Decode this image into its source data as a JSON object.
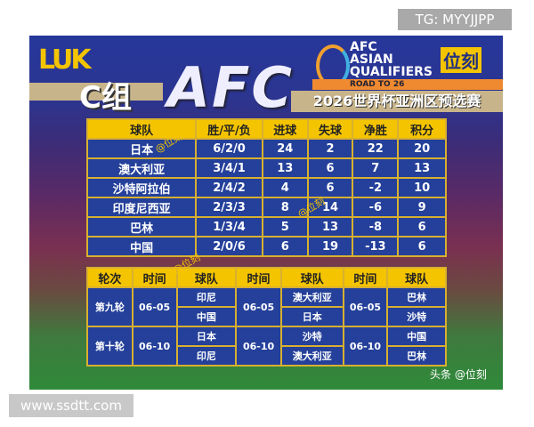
{
  "watermark_top": "TG: MYYJJPP",
  "watermark_bottom": "www.ssdtt.com",
  "header": {
    "logo": "LUK",
    "group": "C组",
    "afc_big": "AFC",
    "afc_logo_lines": [
      "AFC",
      "ASIAN",
      "QUALIFIERS"
    ],
    "road": "ROAD TO 26",
    "brand": "位刻",
    "subtitle": "2026世界杯亚洲区预选赛"
  },
  "standings": {
    "headers": [
      "球队",
      "胜/平/负",
      "进球",
      "失球",
      "净胜",
      "积分"
    ],
    "rows": [
      [
        "日本",
        "6/2/0",
        "24",
        "2",
        "22",
        "20"
      ],
      [
        "澳大利亚",
        "3/4/1",
        "13",
        "6",
        "7",
        "13"
      ],
      [
        "沙特阿拉伯",
        "2/4/2",
        "4",
        "6",
        "-2",
        "10"
      ],
      [
        "印度尼西亚",
        "2/3/3",
        "8",
        "14",
        "-6",
        "9"
      ],
      [
        "巴林",
        "1/3/4",
        "5",
        "13",
        "-8",
        "6"
      ],
      [
        "中国",
        "2/0/6",
        "6",
        "19",
        "-13",
        "6"
      ]
    ]
  },
  "fixtures": {
    "headers": [
      "轮次",
      "时间",
      "球队",
      "时间",
      "球队",
      "时间",
      "球队"
    ],
    "rounds": [
      {
        "round": "第九轮",
        "matches": [
          {
            "date": "06-05",
            "teams": [
              "印尼",
              "中国"
            ]
          },
          {
            "date": "06-05",
            "teams": [
              "澳大利亚",
              "日本"
            ]
          },
          {
            "date": "06-05",
            "teams": [
              "巴林",
              "沙特"
            ]
          }
        ]
      },
      {
        "round": "第十轮",
        "matches": [
          {
            "date": "06-10",
            "teams": [
              "日本",
              "印尼"
            ]
          },
          {
            "date": "06-10",
            "teams": [
              "沙特",
              "澳大利亚"
            ]
          },
          {
            "date": "06-10",
            "teams": [
              "中国",
              "巴林"
            ]
          }
        ]
      }
    ]
  },
  "overlay_watermark": "@位刻",
  "footer_credit": "头条 @位刻"
}
